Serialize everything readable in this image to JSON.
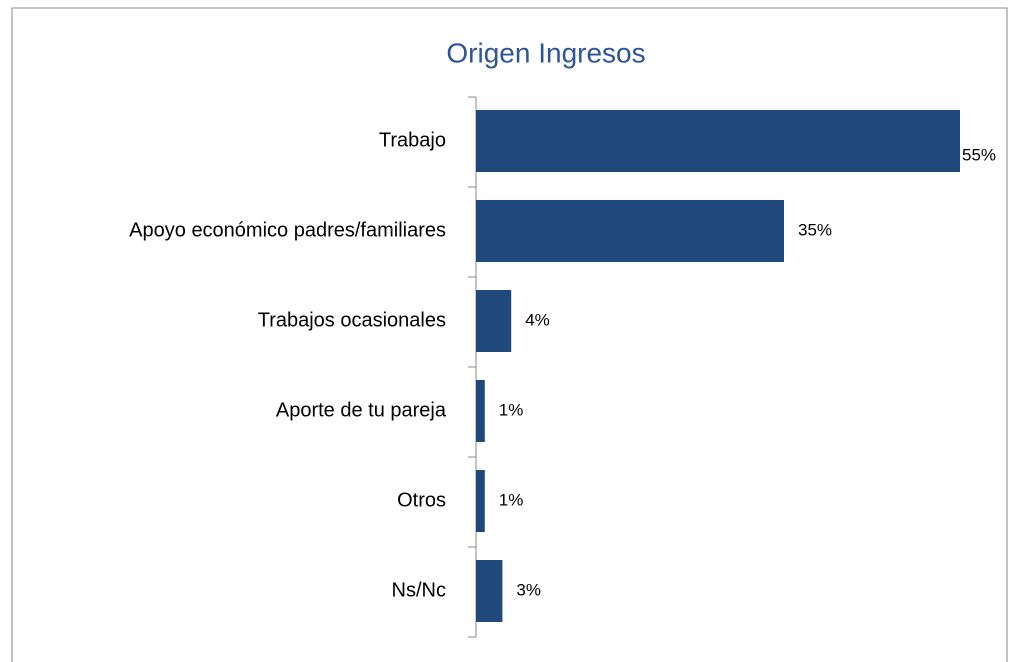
{
  "chart_data": {
    "type": "bar",
    "orientation": "horizontal",
    "title": "Origen Ingresos",
    "categories": [
      "Trabajo",
      "Apoyo económico padres/familiares",
      "Trabajos ocasionales",
      "Aporte de tu pareja",
      "Otros",
      "Ns/Nc"
    ],
    "values": [
      55,
      35,
      4,
      1,
      1,
      3
    ],
    "value_labels": [
      "55%",
      "35%",
      "4%",
      "1%",
      "1%",
      "3%"
    ],
    "color": "#1f497d"
  }
}
